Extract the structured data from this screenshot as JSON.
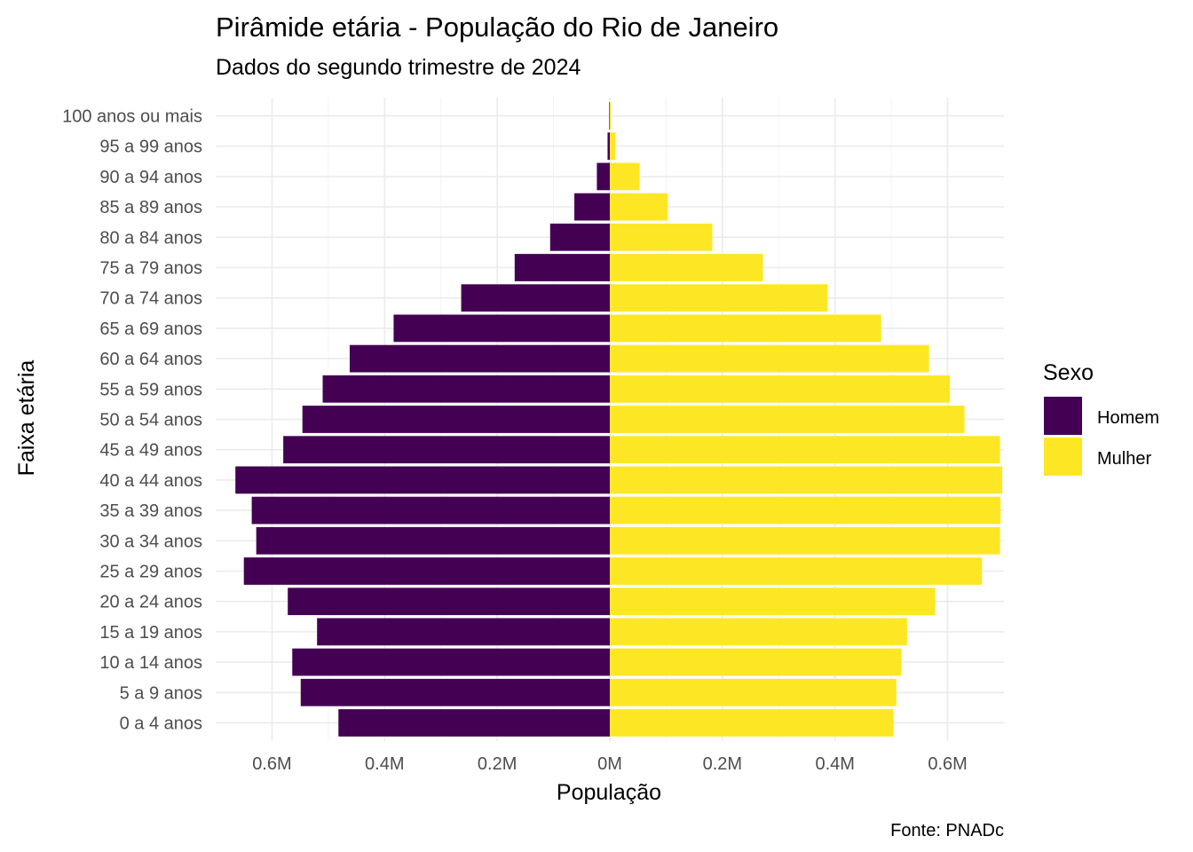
{
  "chart_data": {
    "type": "bar",
    "orientation": "horizontal",
    "title": "Pirâmide etária - População do Rio de Janeiro",
    "subtitle": "Dados do segundo trimestre de 2024",
    "xlabel": "População",
    "ylabel": "Faixa etária",
    "caption": "Fonte: PNADc",
    "legend_title": "Sexo",
    "legend_position": "right",
    "grid": true,
    "xlim": [
      -0.7,
      0.7
    ],
    "x_ticks": [
      -0.6,
      -0.4,
      -0.2,
      0,
      0.2,
      0.4,
      0.6
    ],
    "x_tick_labels": [
      "0.6M",
      "0.4M",
      "0.2M",
      "0M",
      "0.2M",
      "0.4M",
      "0.6M"
    ],
    "categories": [
      "0 a 4 anos",
      "5 a 9 anos",
      "10 a 14 anos",
      "15 a 19 anos",
      "20 a 24 anos",
      "25 a 29 anos",
      "30 a 34 anos",
      "35 a 39 anos",
      "40 a 44 anos",
      "45 a 49 anos",
      "50 a 54 anos",
      "55 a 59 anos",
      "60 a 64 anos",
      "65 a 69 anos",
      "70 a 74 anos",
      "75 a 79 anos",
      "80 a 84 anos",
      "85 a 89 anos",
      "90 a 94 anos",
      "95 a 99 anos",
      "100 anos ou mais"
    ],
    "series": [
      {
        "name": "Homem",
        "color": "#440154",
        "values": [
          -0.482,
          -0.549,
          -0.564,
          -0.52,
          -0.572,
          -0.65,
          -0.628,
          -0.636,
          -0.665,
          -0.58,
          -0.546,
          -0.51,
          -0.462,
          -0.384,
          -0.264,
          -0.169,
          -0.106,
          -0.063,
          -0.023,
          -0.004,
          -0.001
        ]
      },
      {
        "name": "Mulher",
        "color": "#FDE725",
        "values": [
          0.504,
          0.509,
          0.518,
          0.528,
          0.578,
          0.661,
          0.693,
          0.694,
          0.697,
          0.693,
          0.63,
          0.604,
          0.567,
          0.482,
          0.387,
          0.272,
          0.182,
          0.103,
          0.053,
          0.01,
          0.002
        ]
      }
    ]
  }
}
